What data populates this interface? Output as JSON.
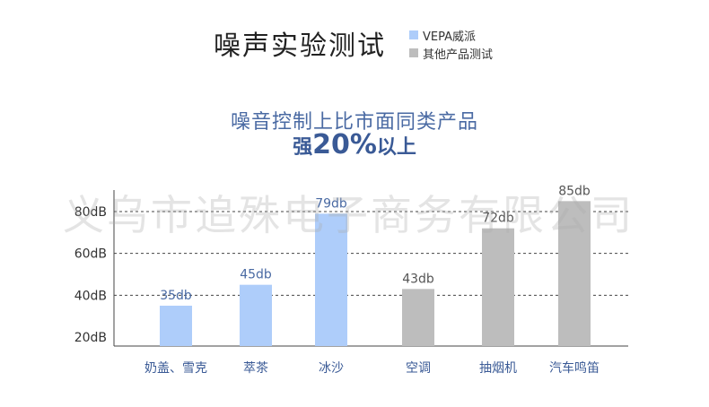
{
  "header": {
    "title": "噪声实验测试",
    "legend": [
      {
        "label": "VEPA威派",
        "color": "#aecdfa"
      },
      {
        "label": "其他产品测试",
        "color": "#bdbdbd"
      }
    ]
  },
  "subtitle": {
    "line1": "噪音控制上比市面同类产品",
    "line2_prefix": "强",
    "line2_value": "20%",
    "line2_suffix": "以上"
  },
  "watermark": "义乌市追殊电子商务有限公司",
  "chart_data": {
    "type": "bar",
    "categories": [
      "奶盖、雪克",
      "萃茶",
      "冰沙",
      "空调",
      "抽烟机",
      "汽车鸣笛"
    ],
    "values": [
      35,
      45,
      79,
      43,
      72,
      85
    ],
    "value_labels": [
      "35db",
      "45db",
      "79db",
      "43db",
      "72db",
      "85db"
    ],
    "groups": [
      "VEPA威派",
      "VEPA威派",
      "VEPA威派",
      "其他产品测试",
      "其他产品测试",
      "其他产品测试"
    ],
    "yticks": [
      "20dB",
      "40dB",
      "60dB",
      "80dB"
    ],
    "ytick_values": [
      20,
      40,
      60,
      80
    ],
    "ylim": [
      20,
      90
    ],
    "grid": true,
    "colors": {
      "VEPA威派": "#aecdfa",
      "其他产品测试": "#bdbdbd"
    },
    "label_colors": {
      "VEPA威派": "#4a6aa3",
      "其他产品测试": "#555555"
    }
  }
}
